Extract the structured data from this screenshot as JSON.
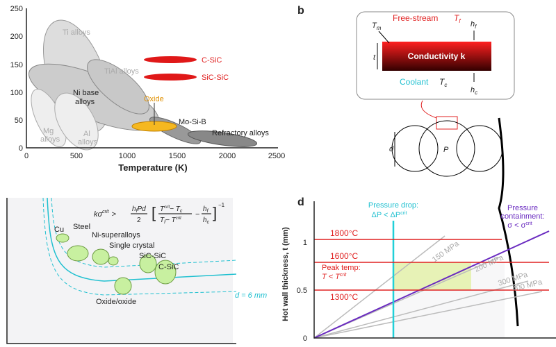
{
  "panel_a": {
    "x_label": "Temperature (K)",
    "x_ticks": [
      0,
      500,
      1000,
      1500,
      2000,
      2500
    ],
    "y_ticks": [
      0,
      50,
      100,
      150,
      200,
      250
    ],
    "regions": {
      "ti": "Ti alloys",
      "tial": "TiAl alloys",
      "ni": [
        "Ni base",
        "alloys"
      ],
      "mg": [
        "Mg",
        "alloys"
      ],
      "al": [
        "Al",
        "alloys"
      ],
      "oxide": "Oxide",
      "mosib": "Mo-Si-B",
      "refractory": "Refractory alloys",
      "csic": "C-SiC",
      "sicsic": "SiC-SiC"
    }
  },
  "panel_b": {
    "label": "b",
    "free_stream": "Free-stream",
    "tf": "T",
    "tf_sub": "f",
    "tm": "T",
    "tm_sub": "m",
    "hf": "h",
    "hf_sub": "f",
    "t": "t",
    "conductivity": "Conductivity k",
    "coolant": "Coolant",
    "tc": "T",
    "tc_sub": "c",
    "hc": "h",
    "hc_sub": "c",
    "d": "d",
    "p": "P"
  },
  "panel_c": {
    "equation": [
      "kσ",
      "crit",
      ">",
      "h",
      "f",
      "Pd",
      "2",
      "T",
      "crit",
      "− T",
      "c",
      "T",
      "f",
      "− T",
      "crit",
      "−",
      "h",
      "f",
      "h",
      "c",
      "−1"
    ],
    "materials": [
      "Cu",
      "Steel",
      "Ni-superalloys",
      "Single crystal",
      "SiC-SiC",
      "C-SiC",
      "Oxide/oxide"
    ],
    "d_label": "d = 6 mm"
  },
  "panel_d": {
    "label": "d",
    "y_label": "Hot wall thickness, t (mm)",
    "y_ticks": [
      0,
      0.5,
      1
    ],
    "temps": [
      "1800°C",
      "1600°C",
      "1300°C"
    ],
    "peak": [
      "Peak temp:",
      "T < T",
      "crit"
    ],
    "drop": [
      "Pressure drop:",
      "ΔP < ΔP",
      "crit"
    ],
    "containment": [
      "Pressure",
      "containment:",
      "σ < σ",
      "crit"
    ],
    "stress": [
      "150 MPa",
      "200 MPa",
      "300 MPa",
      "400 MPa"
    ]
  }
}
